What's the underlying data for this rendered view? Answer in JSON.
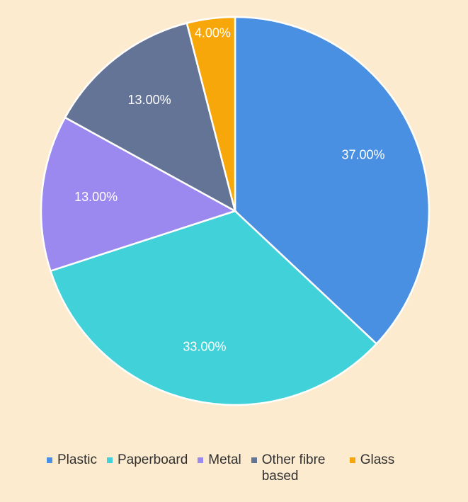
{
  "chart_data": {
    "type": "pie",
    "start_angle_deg": 0,
    "direction": "clockwise",
    "slices": [
      {
        "name": "Plastic",
        "value": 37,
        "label": "37.00%",
        "color": "#4a90e2"
      },
      {
        "name": "Paperboard",
        "value": 33,
        "label": "33.00%",
        "color": "#40d2d8"
      },
      {
        "name": "Metal",
        "value": 13,
        "label": "13.00%",
        "color": "#9b89f0"
      },
      {
        "name": "Other fibre based",
        "value": 13,
        "label": "13.00%",
        "color": "#647496"
      },
      {
        "name": "Glass",
        "value": 4,
        "label": "4.00%",
        "color": "#f7a70a"
      }
    ],
    "legend_position": "bottom"
  },
  "legend": {
    "items": [
      {
        "label": "Plastic",
        "color": "#4a90e2"
      },
      {
        "label": "Paperboard",
        "color": "#40d2d8"
      },
      {
        "label": "Metal",
        "color": "#9b89f0"
      },
      {
        "label": "Other fibre based",
        "color": "#647496"
      },
      {
        "label": "Glass",
        "color": "#f7a70a"
      }
    ]
  },
  "colors": {
    "background": "#fdebcf",
    "slice_border": "#ffffff",
    "label_text": "#ffffff"
  }
}
